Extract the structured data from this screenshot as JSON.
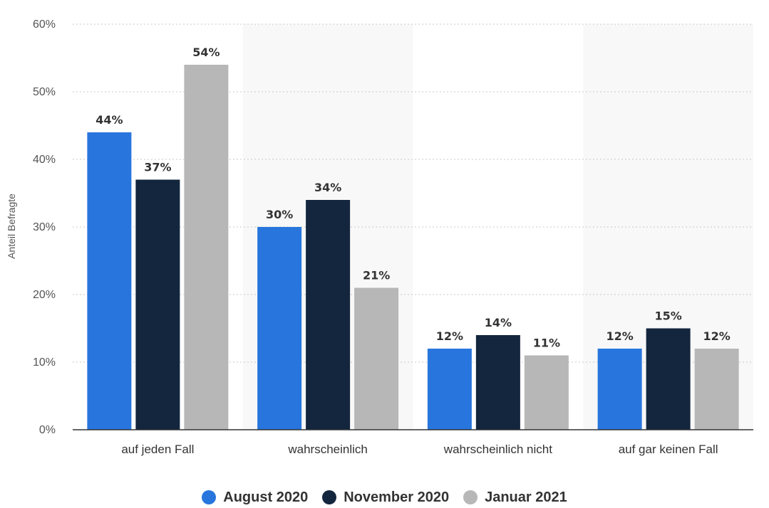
{
  "chart_data": {
    "type": "bar",
    "categories": [
      "auf jeden Fall",
      "wahrscheinlich",
      "wahrscheinlich nicht",
      "auf gar keinen Fall"
    ],
    "series": [
      {
        "name": "August 2020",
        "values": [
          44,
          30,
          12,
          12
        ],
        "color": "#2876dd"
      },
      {
        "name": "November 2020",
        "values": [
          37,
          34,
          14,
          15
        ],
        "color": "#13263e"
      },
      {
        "name": "Januar 2021",
        "values": [
          54,
          21,
          11,
          12
        ],
        "color": "#b7b7b7"
      }
    ],
    "value_suffix": "%",
    "ylabel": "Anteil Befragte",
    "ylim": [
      0,
      60
    ],
    "yticks": [
      "0%",
      "10%",
      "20%",
      "30%",
      "40%",
      "50%",
      "60%"
    ],
    "grid": true,
    "legend_position": "bottom-center"
  }
}
